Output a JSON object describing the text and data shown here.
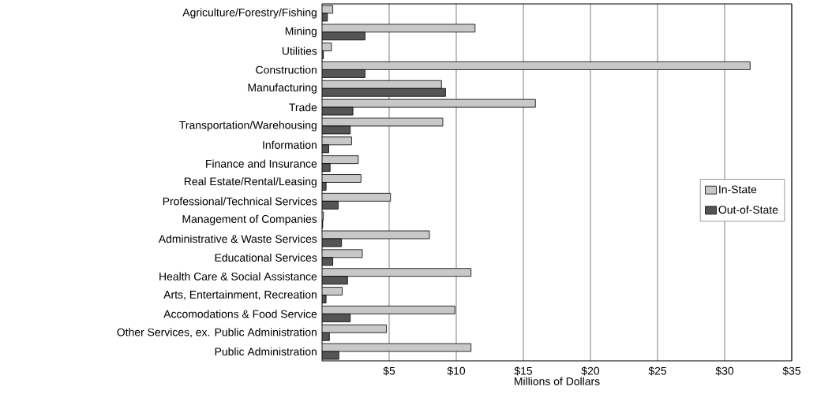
{
  "chart_data": {
    "type": "bar",
    "orientation": "horizontal",
    "xlabel": "Millions of Dollars",
    "categories": [
      "Agriculture/Forestry/Fishing",
      "Mining",
      "Utilities",
      "Construction",
      "Manufacturing",
      "Trade",
      "Transportation/Warehousing",
      "Information",
      "Finance and Insurance",
      "Real Estate/Rental/Leasing",
      "Professional/Technical Services",
      "Management of Companies",
      "Administrative & Waste Services",
      "Educational Services",
      "Health Care & Social Assistance",
      "Arts, Entertainment, Recreation",
      "Accomodations & Food Service",
      "Other Services, ex. Public Administration",
      "Public Administration"
    ],
    "series": [
      {
        "name": "In-State",
        "color": "#c8c8c8",
        "values": [
          0.8,
          11.4,
          0.7,
          31.9,
          8.9,
          15.9,
          9.0,
          2.2,
          2.7,
          2.9,
          5.1,
          0.1,
          8.0,
          3.0,
          11.1,
          1.5,
          9.9,
          4.8,
          11.1
        ]
      },
      {
        "name": "Out-of-State",
        "color": "#555555",
        "values": [
          0.4,
          3.2,
          0.1,
          3.2,
          9.2,
          2.3,
          2.1,
          0.5,
          0.6,
          0.3,
          1.2,
          0.05,
          1.45,
          0.8,
          1.9,
          0.3,
          2.1,
          0.55,
          1.25
        ]
      }
    ],
    "xlim": [
      0,
      35
    ],
    "xticks": [
      {
        "value": 5,
        "label": "$5"
      },
      {
        "value": 10,
        "label": "$10"
      },
      {
        "value": 15,
        "label": "$15"
      },
      {
        "value": 20,
        "label": "$20"
      },
      {
        "value": 25,
        "label": "$25"
      },
      {
        "value": 30,
        "label": "$30"
      },
      {
        "value": 35,
        "label": "$35"
      }
    ],
    "grid": "x",
    "legend": "right"
  }
}
